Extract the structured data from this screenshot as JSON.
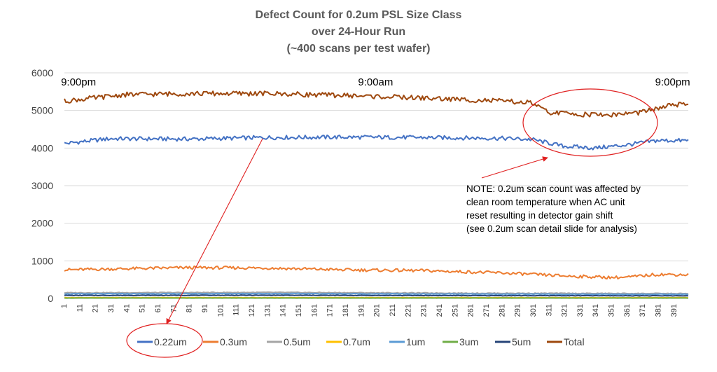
{
  "chart_data": {
    "type": "line",
    "title": [
      "Defect Count for 0.2um PSL Size Class",
      "over 24-Hour Run",
      "(~400 scans per test wafer)"
    ],
    "xlabel": "",
    "ylabel": "",
    "ylim": [
      0,
      6000
    ],
    "yticks": [
      0,
      1000,
      2000,
      3000,
      4000,
      5000,
      6000
    ],
    "xlim": [
      1,
      400
    ],
    "xticks": [
      1,
      11,
      21,
      31,
      41,
      51,
      61,
      71,
      81,
      91,
      101,
      111,
      121,
      131,
      141,
      151,
      161,
      171,
      181,
      191,
      201,
      211,
      221,
      231,
      241,
      251,
      261,
      271,
      281,
      291,
      301,
      311,
      321,
      331,
      341,
      351,
      361,
      371,
      381,
      391
    ],
    "grid": "horizontal",
    "legend_position": "bottom",
    "time_annotations": [
      {
        "text": "9:00pm",
        "x": 10
      },
      {
        "text": "9:00am",
        "x": 200
      },
      {
        "text": "9:00pm",
        "x": 390
      }
    ],
    "note": [
      "NOTE: 0.2um scan count was affected by",
      "clean room temperature when AC unit",
      "reset resulting in detector gain shift",
      "(see 0.2um scan detail slide for  analysis)"
    ],
    "series": [
      {
        "name": "0.22um",
        "color": "#4472C4",
        "points": [
          [
            1,
            4120
          ],
          [
            30,
            4250
          ],
          [
            80,
            4240
          ],
          [
            130,
            4280
          ],
          [
            180,
            4290
          ],
          [
            230,
            4280
          ],
          [
            280,
            4260
          ],
          [
            300,
            4230
          ],
          [
            320,
            4050
          ],
          [
            340,
            4000
          ],
          [
            360,
            4080
          ],
          [
            380,
            4200
          ],
          [
            400,
            4200
          ]
        ],
        "noise": 55
      },
      {
        "name": "0.3um",
        "color": "#ED7D31",
        "points": [
          [
            1,
            760
          ],
          [
            40,
            790
          ],
          [
            80,
            820
          ],
          [
            130,
            810
          ],
          [
            180,
            760
          ],
          [
            230,
            740
          ],
          [
            280,
            680
          ],
          [
            320,
            600
          ],
          [
            350,
            560
          ],
          [
            360,
            560
          ],
          [
            380,
            640
          ],
          [
            400,
            630
          ]
        ],
        "noise": 40
      },
      {
        "name": "0.5um",
        "color": "#A5A5A5",
        "points": [
          [
            1,
            150
          ],
          [
            130,
            160
          ],
          [
            260,
            140
          ],
          [
            400,
            130
          ]
        ],
        "noise": 10
      },
      {
        "name": "0.7um",
        "color": "#FFC000",
        "points": [
          [
            1,
            20
          ],
          [
            400,
            20
          ]
        ],
        "noise": 4
      },
      {
        "name": "1um",
        "color": "#5B9BD5",
        "points": [
          [
            1,
            120
          ],
          [
            130,
            130
          ],
          [
            260,
            115
          ],
          [
            400,
            110
          ]
        ],
        "noise": 10
      },
      {
        "name": "3um",
        "color": "#70AD47",
        "points": [
          [
            1,
            10
          ],
          [
            400,
            10
          ]
        ],
        "noise": 3
      },
      {
        "name": "5um",
        "color": "#264478",
        "points": [
          [
            1,
            80
          ],
          [
            130,
            85
          ],
          [
            260,
            75
          ],
          [
            400,
            70
          ]
        ],
        "noise": 6
      },
      {
        "name": "Total",
        "color": "#9E480E",
        "points": [
          [
            1,
            5250
          ],
          [
            40,
            5420
          ],
          [
            80,
            5450
          ],
          [
            130,
            5450
          ],
          [
            180,
            5400
          ],
          [
            230,
            5330
          ],
          [
            280,
            5250
          ],
          [
            300,
            5200
          ],
          [
            310,
            4950
          ],
          [
            330,
            4900
          ],
          [
            350,
            4880
          ],
          [
            370,
            4950
          ],
          [
            390,
            5150
          ],
          [
            400,
            5150
          ]
        ],
        "noise": 65
      }
    ]
  }
}
